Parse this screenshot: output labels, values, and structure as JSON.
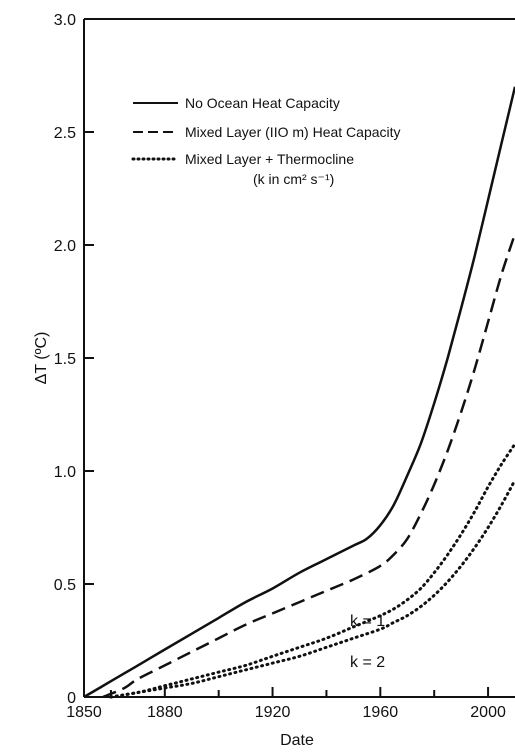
{
  "chart_data": {
    "type": "line",
    "title": "",
    "xlabel": "Date",
    "ylabel": "ΔT (ºC)",
    "xlim": [
      1850,
      2010
    ],
    "ylim": [
      0,
      3.0
    ],
    "x_ticks": [
      1850,
      1880,
      1920,
      1960,
      2000
    ],
    "y_ticks": [
      {
        "value": 0,
        "label": "0"
      },
      {
        "value": 0.5,
        "label": "0.5"
      },
      {
        "value": 1.0,
        "label": "1.0"
      },
      {
        "value": 1.5,
        "label": "1.5"
      },
      {
        "value": 2.0,
        "label": "2.0"
      },
      {
        "value": 2.5,
        "label": "2.5"
      },
      {
        "value": 3.0,
        "label": "3.0"
      }
    ],
    "grid": false,
    "legend_position": "top-left",
    "legend": [
      {
        "label": "No Ocean Heat Capacity",
        "style": "solid"
      },
      {
        "label": "Mixed Layer (IIO m) Heat Capacity",
        "style": "dashed"
      },
      {
        "label": "Mixed Layer + Thermocline",
        "sublabel": "(k in cm² s⁻¹)",
        "style": "dotted"
      }
    ],
    "series": [
      {
        "name": "No Ocean Heat Capacity",
        "style": "solid",
        "x": [
          1850,
          1860,
          1870,
          1880,
          1890,
          1900,
          1910,
          1920,
          1930,
          1940,
          1950,
          1955,
          1960,
          1965,
          1970,
          1975,
          1980,
          1985,
          1990,
          1995,
          2000,
          2005,
          2010
        ],
        "y": [
          0.0,
          0.07,
          0.14,
          0.21,
          0.28,
          0.35,
          0.42,
          0.48,
          0.55,
          0.61,
          0.67,
          0.7,
          0.76,
          0.85,
          0.98,
          1.12,
          1.3,
          1.5,
          1.72,
          1.95,
          2.2,
          2.45,
          2.7
        ]
      },
      {
        "name": "Mixed Layer (IIO m) Heat Capacity",
        "style": "dashed",
        "x": [
          1857,
          1865,
          1870,
          1880,
          1890,
          1900,
          1910,
          1920,
          1930,
          1940,
          1950,
          1960,
          1965,
          1970,
          1975,
          1980,
          1985,
          1990,
          1995,
          2000,
          2005,
          2010
        ],
        "y": [
          0.0,
          0.04,
          0.08,
          0.14,
          0.2,
          0.26,
          0.32,
          0.37,
          0.42,
          0.47,
          0.52,
          0.58,
          0.63,
          0.7,
          0.81,
          0.94,
          1.09,
          1.26,
          1.45,
          1.66,
          1.87,
          2.05
        ]
      },
      {
        "name": "k=1",
        "style": "dotted",
        "x": [
          1860,
          1870,
          1880,
          1890,
          1900,
          1910,
          1920,
          1930,
          1940,
          1950,
          1960,
          1965,
          1970,
          1975,
          1980,
          1985,
          1990,
          1995,
          2000,
          2005,
          2010
        ],
        "y": [
          0.0,
          0.02,
          0.05,
          0.08,
          0.11,
          0.14,
          0.18,
          0.22,
          0.26,
          0.31,
          0.36,
          0.39,
          0.43,
          0.48,
          0.55,
          0.63,
          0.72,
          0.82,
          0.93,
          1.03,
          1.12
        ]
      },
      {
        "name": "k=2",
        "style": "dotted",
        "x": [
          1860,
          1870,
          1880,
          1890,
          1900,
          1910,
          1920,
          1930,
          1940,
          1950,
          1960,
          1965,
          1970,
          1975,
          1980,
          1985,
          1990,
          1995,
          2000,
          2005,
          2010
        ],
        "y": [
          0.0,
          0.02,
          0.04,
          0.06,
          0.09,
          0.12,
          0.15,
          0.18,
          0.22,
          0.26,
          0.3,
          0.33,
          0.36,
          0.4,
          0.45,
          0.51,
          0.58,
          0.66,
          0.75,
          0.85,
          0.96
        ]
      }
    ],
    "annotations": [
      {
        "text": "k = 1",
        "x": 1970,
        "y": 0.52
      },
      {
        "text": "k = 2",
        "x": 1970,
        "y": 0.16
      }
    ]
  }
}
